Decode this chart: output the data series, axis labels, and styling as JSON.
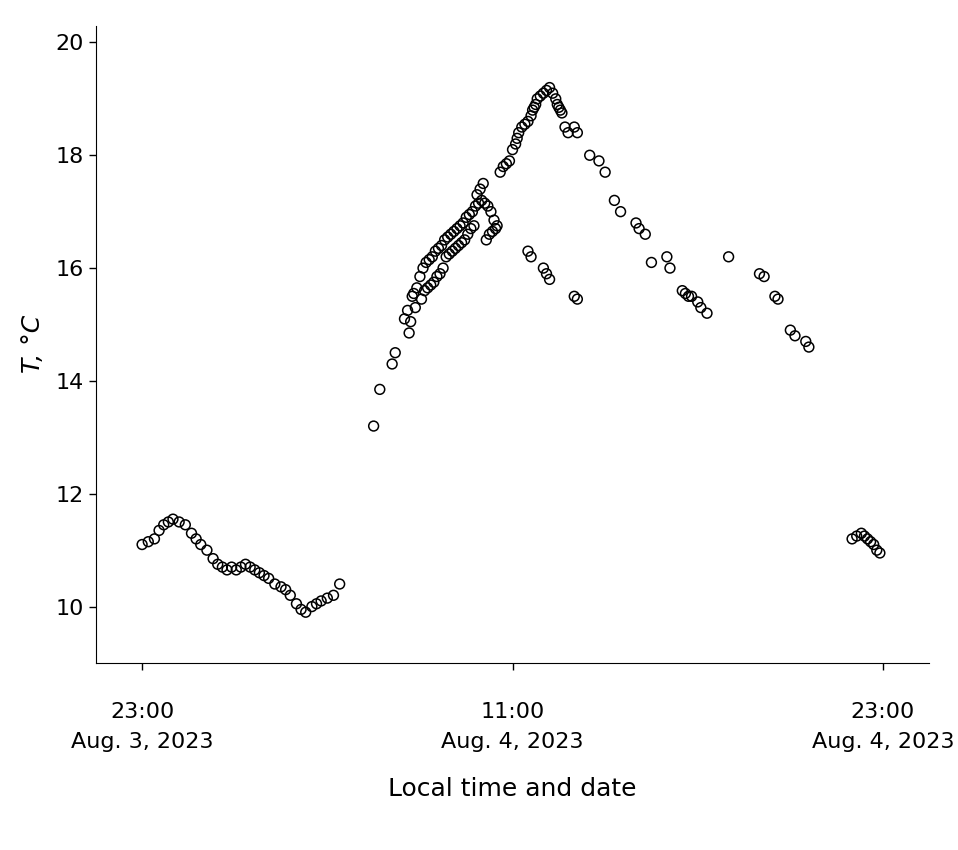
{
  "ylabel": "T, °C",
  "xlabel": "Local time and date",
  "ylim": [
    9.0,
    20.3
  ],
  "yticks": [
    10,
    12,
    14,
    16,
    18,
    20
  ],
  "xlim": [
    -1.5,
    25.5
  ],
  "marker_size": 50,
  "marker_linewidth": 1.1,
  "tick_label_fontsize": 16,
  "axis_label_fontsize": 18,
  "ylabel_fontsize": 18,
  "xtick_positions_hours": [
    0,
    12,
    24
  ],
  "tick_texts_time": [
    "23:00",
    "11:00",
    "23:00"
  ],
  "tick_texts_date": [
    "Aug. 3, 2023",
    "Aug. 4, 2023",
    "Aug. 4, 2023"
  ],
  "points": [
    [
      0.0,
      11.1
    ],
    [
      0.2,
      11.15
    ],
    [
      0.4,
      11.2
    ],
    [
      0.55,
      11.35
    ],
    [
      0.7,
      11.45
    ],
    [
      0.85,
      11.5
    ],
    [
      1.0,
      11.55
    ],
    [
      1.2,
      11.5
    ],
    [
      1.4,
      11.45
    ],
    [
      1.6,
      11.3
    ],
    [
      1.75,
      11.2
    ],
    [
      1.9,
      11.1
    ],
    [
      2.1,
      11.0
    ],
    [
      2.3,
      10.85
    ],
    [
      2.45,
      10.75
    ],
    [
      2.6,
      10.7
    ],
    [
      2.75,
      10.65
    ],
    [
      2.9,
      10.7
    ],
    [
      3.05,
      10.65
    ],
    [
      3.2,
      10.7
    ],
    [
      3.35,
      10.75
    ],
    [
      3.5,
      10.7
    ],
    [
      3.65,
      10.65
    ],
    [
      3.8,
      10.6
    ],
    [
      3.95,
      10.55
    ],
    [
      4.1,
      10.5
    ],
    [
      4.3,
      10.4
    ],
    [
      4.5,
      10.35
    ],
    [
      4.65,
      10.3
    ],
    [
      4.8,
      10.2
    ],
    [
      5.0,
      10.05
    ],
    [
      5.15,
      9.95
    ],
    [
      5.3,
      9.9
    ],
    [
      5.5,
      10.0
    ],
    [
      5.65,
      10.05
    ],
    [
      5.8,
      10.1
    ],
    [
      6.0,
      10.15
    ],
    [
      6.2,
      10.2
    ],
    [
      6.4,
      10.4
    ],
    [
      7.5,
      13.2
    ],
    [
      7.7,
      13.85
    ],
    [
      8.1,
      14.3
    ],
    [
      8.2,
      14.5
    ],
    [
      8.5,
      15.1
    ],
    [
      8.6,
      15.25
    ],
    [
      8.65,
      14.85
    ],
    [
      8.7,
      15.05
    ],
    [
      8.75,
      15.5
    ],
    [
      8.8,
      15.55
    ],
    [
      8.85,
      15.3
    ],
    [
      8.9,
      15.65
    ],
    [
      9.0,
      15.85
    ],
    [
      9.05,
      15.45
    ],
    [
      9.1,
      16.0
    ],
    [
      9.15,
      15.6
    ],
    [
      9.2,
      16.1
    ],
    [
      9.25,
      15.65
    ],
    [
      9.3,
      16.15
    ],
    [
      9.35,
      15.7
    ],
    [
      9.4,
      16.2
    ],
    [
      9.45,
      15.75
    ],
    [
      9.5,
      16.3
    ],
    [
      9.55,
      15.85
    ],
    [
      9.6,
      16.35
    ],
    [
      9.65,
      15.9
    ],
    [
      9.7,
      16.4
    ],
    [
      9.75,
      16.0
    ],
    [
      9.8,
      16.5
    ],
    [
      9.85,
      16.2
    ],
    [
      9.9,
      16.55
    ],
    [
      9.95,
      16.25
    ],
    [
      10.0,
      16.6
    ],
    [
      10.05,
      16.3
    ],
    [
      10.1,
      16.65
    ],
    [
      10.15,
      16.35
    ],
    [
      10.2,
      16.7
    ],
    [
      10.25,
      16.4
    ],
    [
      10.3,
      16.75
    ],
    [
      10.35,
      16.45
    ],
    [
      10.4,
      16.8
    ],
    [
      10.45,
      16.5
    ],
    [
      10.5,
      16.9
    ],
    [
      10.55,
      16.6
    ],
    [
      10.6,
      16.95
    ],
    [
      10.65,
      16.7
    ],
    [
      10.7,
      17.0
    ],
    [
      10.75,
      16.75
    ],
    [
      10.8,
      17.1
    ],
    [
      10.85,
      17.3
    ],
    [
      10.9,
      17.15
    ],
    [
      10.95,
      17.4
    ],
    [
      11.0,
      17.2
    ],
    [
      11.05,
      17.5
    ],
    [
      11.1,
      17.15
    ],
    [
      11.15,
      16.5
    ],
    [
      11.2,
      17.1
    ],
    [
      11.25,
      16.6
    ],
    [
      11.3,
      17.0
    ],
    [
      11.35,
      16.65
    ],
    [
      11.4,
      16.85
    ],
    [
      11.45,
      16.7
    ],
    [
      11.5,
      16.75
    ],
    [
      11.6,
      17.7
    ],
    [
      11.7,
      17.8
    ],
    [
      11.8,
      17.85
    ],
    [
      11.9,
      17.9
    ],
    [
      12.0,
      18.1
    ],
    [
      12.1,
      18.2
    ],
    [
      12.15,
      18.3
    ],
    [
      12.2,
      18.4
    ],
    [
      12.3,
      18.5
    ],
    [
      12.4,
      18.55
    ],
    [
      12.5,
      18.6
    ],
    [
      12.6,
      18.7
    ],
    [
      12.65,
      18.8
    ],
    [
      12.7,
      18.85
    ],
    [
      12.75,
      18.9
    ],
    [
      12.8,
      19.0
    ],
    [
      12.9,
      19.05
    ],
    [
      13.0,
      19.1
    ],
    [
      13.1,
      19.15
    ],
    [
      13.2,
      19.2
    ],
    [
      13.3,
      19.1
    ],
    [
      13.4,
      19.0
    ],
    [
      13.45,
      18.9
    ],
    [
      13.5,
      18.85
    ],
    [
      13.55,
      18.8
    ],
    [
      13.6,
      18.75
    ],
    [
      13.7,
      18.5
    ],
    [
      13.8,
      18.4
    ],
    [
      14.0,
      18.5
    ],
    [
      14.1,
      18.4
    ],
    [
      14.5,
      18.0
    ],
    [
      14.8,
      17.9
    ],
    [
      15.0,
      17.7
    ],
    [
      15.3,
      17.2
    ],
    [
      15.5,
      17.0
    ],
    [
      16.0,
      16.8
    ],
    [
      16.1,
      16.7
    ],
    [
      16.3,
      16.6
    ],
    [
      16.5,
      16.1
    ],
    [
      17.0,
      16.2
    ],
    [
      17.1,
      16.0
    ],
    [
      17.5,
      15.6
    ],
    [
      17.6,
      15.55
    ],
    [
      17.7,
      15.5
    ],
    [
      17.8,
      15.5
    ],
    [
      18.0,
      15.4
    ],
    [
      18.1,
      15.3
    ],
    [
      18.3,
      15.2
    ],
    [
      19.0,
      16.2
    ],
    [
      20.0,
      15.9
    ],
    [
      20.15,
      15.85
    ],
    [
      20.5,
      15.5
    ],
    [
      20.6,
      15.45
    ],
    [
      21.0,
      14.9
    ],
    [
      21.15,
      14.8
    ],
    [
      21.5,
      14.7
    ],
    [
      21.6,
      14.6
    ],
    [
      23.0,
      11.2
    ],
    [
      23.15,
      11.25
    ],
    [
      23.3,
      11.3
    ],
    [
      23.4,
      11.25
    ],
    [
      23.5,
      11.2
    ],
    [
      23.6,
      11.15
    ],
    [
      23.7,
      11.1
    ],
    [
      23.8,
      11.0
    ],
    [
      23.9,
      10.95
    ],
    [
      12.5,
      16.3
    ],
    [
      12.6,
      16.2
    ],
    [
      13.0,
      16.0
    ],
    [
      13.1,
      15.9
    ],
    [
      13.2,
      15.8
    ],
    [
      14.0,
      15.5
    ],
    [
      14.1,
      15.45
    ]
  ]
}
